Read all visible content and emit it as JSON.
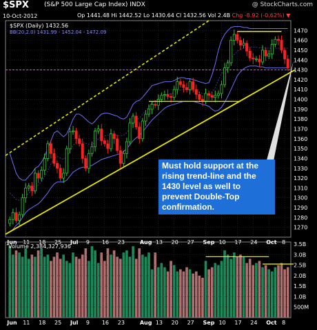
{
  "header": {
    "symbol": "$SPX",
    "description": "(S&P 500 Large Cap Index) INDX",
    "watermark": "@ StockCharts.com",
    "date": "10-Oct-2012",
    "quote_open": "Op 1441.48",
    "quote_high": "Hi 1442.52",
    "quote_low": "Lo 1430.64",
    "quote_close": "Cl 1432.56",
    "quote_vol": "Vol 2.4B",
    "quote_chg": "Chg -8.92 (-0.62%)",
    "chg_arrow": "▼"
  },
  "legend": {
    "price_label": "$SPX (Daily) 1432.56",
    "bb_label": "BB(20,2.0) 1431.99 - 1452.04 - 1472.09",
    "volume_label": "Volume 2,384,327,936"
  },
  "annotation": "Must hold support at the rising trend-line and the 1430 level as well to prevent Double-Top confirmation.",
  "colors": {
    "up": "#33cc33",
    "down": "#ff2020",
    "bb": "#7070ff",
    "trend": "#e6e600",
    "support": "#cc33cc",
    "vol_up": "#1a8a5a",
    "vol_down": "#b07070"
  },
  "chart_data": [
    {
      "type": "candlestick",
      "title": "$SPX (Daily) 1432.56",
      "ylim": [
        1260,
        1480
      ],
      "y_ticks": [
        1270,
        1280,
        1290,
        1300,
        1310,
        1320,
        1330,
        1340,
        1350,
        1360,
        1370,
        1380,
        1390,
        1400,
        1410,
        1420,
        1430,
        1440,
        1450,
        1460,
        1470
      ],
      "x_ticks": [
        "Jun",
        "11",
        "18",
        "25",
        "Jul",
        "9",
        "16",
        "23",
        "Aug",
        "13",
        "20",
        "27",
        "Sep",
        "10",
        "17",
        "24",
        "Oct",
        "8"
      ],
      "close": [
        1278,
        1285,
        1277,
        1283,
        1300,
        1310,
        1312,
        1307,
        1325,
        1320,
        1328,
        1340,
        1355,
        1345,
        1335,
        1330,
        1320,
        1325,
        1350,
        1367,
        1368,
        1360,
        1355,
        1340,
        1330,
        1345,
        1352,
        1368,
        1370,
        1358,
        1355,
        1350,
        1365,
        1360,
        1348,
        1335,
        1345,
        1357,
        1376,
        1383,
        1372,
        1360,
        1378,
        1385,
        1390,
        1395,
        1394,
        1400,
        1404,
        1405,
        1403,
        1402,
        1410,
        1418,
        1415,
        1412,
        1410,
        1418,
        1410,
        1405,
        1400,
        1398,
        1406,
        1404,
        1402,
        1404,
        1406,
        1415,
        1432,
        1437,
        1460,
        1466,
        1460,
        1455,
        1457,
        1449,
        1442,
        1441,
        1441,
        1438,
        1450,
        1444,
        1446,
        1456,
        1461,
        1460,
        1450,
        1441,
        1432
      ],
      "bb_upper": [
        1345,
        1335,
        1325,
        1320,
        1318,
        1318,
        1322,
        1325,
        1330,
        1332,
        1336,
        1342,
        1350,
        1358,
        1366,
        1368,
        1365,
        1362,
        1365,
        1372,
        1380,
        1385,
        1385,
        1383,
        1380,
        1377,
        1375,
        1378,
        1382,
        1385,
        1386,
        1386,
        1385,
        1384,
        1383,
        1381,
        1380,
        1382,
        1388,
        1395,
        1398,
        1399,
        1402,
        1406,
        1410,
        1414,
        1415,
        1416,
        1417,
        1418,
        1418,
        1418,
        1419,
        1421,
        1422,
        1422,
        1421,
        1421,
        1420,
        1419,
        1418,
        1417,
        1416,
        1417,
        1425,
        1436,
        1450,
        1460,
        1466,
        1470,
        1473,
        1474,
        1474,
        1474,
        1473,
        1473,
        1472,
        1472,
        1472,
        1472,
        1472,
        1472,
        1472,
        1472,
        1472,
        1472,
        1472,
        1472,
        1472
      ],
      "bb_lower": [
        1265,
        1268,
        1272,
        1275,
        1280,
        1285,
        1288,
        1290,
        1292,
        1294,
        1297,
        1301,
        1305,
        1310,
        1314,
        1316,
        1316,
        1316,
        1318,
        1322,
        1326,
        1328,
        1330,
        1331,
        1331,
        1332,
        1333,
        1335,
        1337,
        1339,
        1340,
        1341,
        1342,
        1343,
        1344,
        1345,
        1347,
        1350,
        1354,
        1358,
        1361,
        1363,
        1367,
        1371,
        1375,
        1379,
        1382,
        1385,
        1388,
        1391,
        1393,
        1394,
        1395,
        1396,
        1397,
        1398,
        1398,
        1398,
        1398,
        1397,
        1396,
        1395,
        1394,
        1393,
        1390,
        1388,
        1389,
        1392,
        1397,
        1403,
        1410,
        1417,
        1424,
        1428,
        1431,
        1433,
        1434,
        1434,
        1434,
        1433,
        1433,
        1432,
        1432,
        1432,
        1432,
        1432,
        1432,
        1432,
        1432
      ],
      "support_level": 1430,
      "channel_top_line": "upper dashed yellow",
      "trend_line": "rising yellow support"
    },
    {
      "type": "bar",
      "title": "Volume 2,384,327,936",
      "ylim": [
        0,
        3.6
      ],
      "y_ticks": [
        "3.5B",
        "3.0B",
        "2.5B",
        "2.0B",
        "1.5B",
        "1.0B",
        "500M"
      ],
      "y_tick_values": [
        3.5,
        3.0,
        2.5,
        2.0,
        1.5,
        1.0,
        0.5
      ],
      "unit": "B",
      "values": [
        3.4,
        3.0,
        3.2,
        3.1,
        2.9,
        3.3,
        2.8,
        3.0,
        2.9,
        3.2,
        3.3,
        2.9,
        3.0,
        2.7,
        2.9,
        3.1,
        2.8,
        3.0,
        2.7,
        2.6,
        3.1,
        2.9,
        2.8,
        3.0,
        3.3,
        2.7,
        3.4,
        3.2,
        2.6,
        3.1,
        2.7,
        3.3,
        3.0,
        3.2,
        2.9,
        2.8,
        3.1,
        3.2,
        2.9,
        3.4,
        2.8,
        3.3,
        3.0,
        2.9,
        3.1,
        2.3,
        3.1,
        2.4,
        2.6,
        2.4,
        2.2,
        2.7,
        2.5,
        2.2,
        2.3,
        2.2,
        2.4,
        2.3,
        2.1,
        2.2,
        2.0,
        1.9,
        2.7,
        2.3,
        2.4,
        2.6,
        2.5,
        2.7,
        3.2,
        3.0,
        2.8,
        3.1,
        2.9,
        3.0,
        2.9,
        2.6,
        2.8,
        2.5,
        2.6,
        2.7,
        2.4,
        2.5,
        2.3,
        2.2,
        2.4,
        2.5,
        2.6,
        2.3,
        2.4
      ],
      "x_ticks": [
        "Jun",
        "11",
        "18",
        "25",
        "Jul",
        "9",
        "16",
        "23",
        "Aug",
        "13",
        "20",
        "27",
        "Sep",
        "10",
        "17",
        "24",
        "Oct",
        "8"
      ]
    }
  ]
}
